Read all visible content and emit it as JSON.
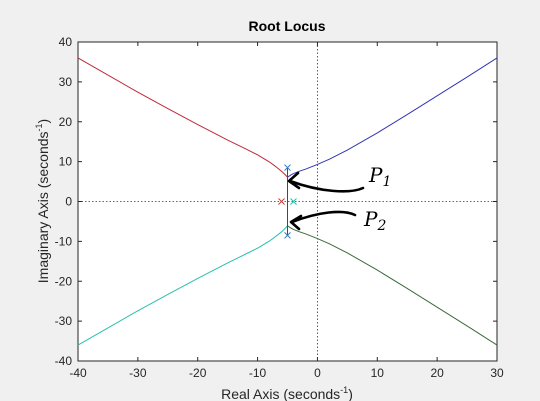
{
  "chart_data": {
    "type": "line",
    "title": "Root Locus",
    "xlabel": "Real Axis (seconds",
    "ylabel": "Imaginary Axis (seconds",
    "axis_unit_exponent": "-1",
    "axis_label_close": ")",
    "xlim": [
      -40,
      30
    ],
    "ylim": [
      -40,
      40
    ],
    "xticks": [
      -40,
      -30,
      -20,
      -10,
      0,
      10,
      20,
      30
    ],
    "yticks": [
      -40,
      -30,
      -20,
      -10,
      0,
      10,
      20,
      30,
      40
    ],
    "grid": "origin lines only (dotted)",
    "series": [
      {
        "color": "#bf2a3a",
        "x": [
          -40,
          -35,
          -30,
          -25,
          -20,
          -15,
          -12,
          -10,
          -8,
          -7,
          -6,
          -5.5,
          -5
        ],
        "y": [
          36,
          31.7,
          27.4,
          23.3,
          19.3,
          15.4,
          13.2,
          11.7,
          9.9,
          8.8,
          7.6,
          6.9,
          6.1
        ]
      },
      {
        "color": "#3535b5",
        "x": [
          -5,
          -4.5,
          -4,
          -3,
          -2,
          0,
          2,
          5,
          10,
          15,
          20,
          25,
          30
        ],
        "y": [
          6.1,
          6.6,
          7.0,
          7.6,
          8.1,
          9.3,
          10.6,
          12.9,
          17.2,
          21.8,
          26.5,
          31.2,
          36
        ]
      },
      {
        "color": "#2bbfb0",
        "x": [
          -40,
          -35,
          -30,
          -25,
          -20,
          -15,
          -12,
          -10,
          -8,
          -7,
          -6,
          -5.5,
          -5
        ],
        "y": [
          -36,
          -31.7,
          -27.4,
          -23.3,
          -19.3,
          -15.4,
          -13.2,
          -11.7,
          -9.9,
          -8.8,
          -7.6,
          -6.9,
          -6.1
        ]
      },
      {
        "color": "#3b6b3b",
        "x": [
          -5,
          -4.5,
          -4,
          -3,
          -2,
          0,
          2,
          5,
          10,
          15,
          20,
          25,
          30
        ],
        "y": [
          -6.1,
          -6.6,
          -7.0,
          -7.6,
          -8.1,
          -9.3,
          -10.6,
          -12.9,
          -17.2,
          -21.8,
          -26.5,
          -31.2,
          -36
        ]
      },
      {
        "color": "#6a2a8a",
        "x": [
          -5,
          -5
        ],
        "y": [
          -8.5,
          8.5
        ]
      }
    ],
    "poles": [
      {
        "x": -5,
        "y": 8.5
      },
      {
        "x": -5,
        "y": -8.5
      },
      {
        "x": -6,
        "y": 0
      },
      {
        "x": -4,
        "y": 0
      }
    ],
    "annotations": [
      {
        "label": "P",
        "subscript": "1"
      },
      {
        "label": "P",
        "subscript": "2"
      }
    ]
  }
}
